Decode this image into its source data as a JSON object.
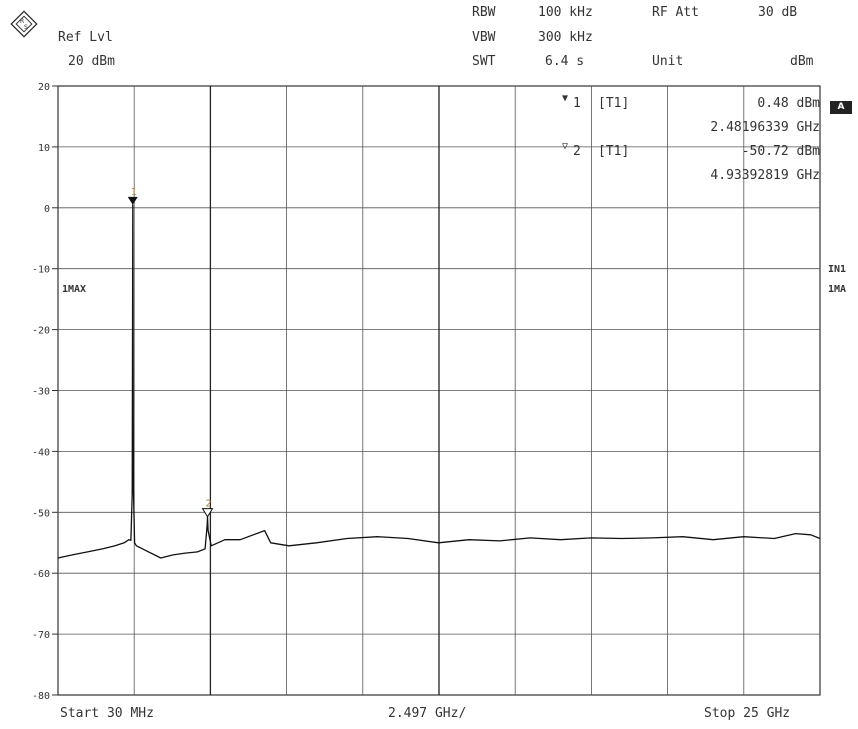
{
  "header": {
    "ref_lvl_label": "Ref Lvl",
    "ref_lvl_value": "20 dBm",
    "rbw_label": "RBW",
    "rbw_value": "100 kHz",
    "vbw_label": "VBW",
    "vbw_value": "300 kHz",
    "swt_label": "SWT",
    "swt_value": "6.4 s",
    "rf_att_label": "RF Att",
    "rf_att_value": "30 dB",
    "unit_label": "Unit",
    "unit_value": "dBm"
  },
  "markers": [
    {
      "id": "1",
      "trace": "[T1]",
      "level": "0.48 dBm",
      "freq": "2.48196339 GHz"
    },
    {
      "id": "2",
      "trace": "[T1]",
      "level": "-50.72 dBm",
      "freq": "4.93392819 GHz"
    }
  ],
  "side_labels": {
    "box_a": "A",
    "in1": "IN1",
    "ma1": "1MA",
    "trace_mode": "1MAX"
  },
  "footer": {
    "start": "Start 30 MHz",
    "span": "2.497 GHz/",
    "stop": "Stop 25 GHz"
  },
  "chart_data": {
    "type": "line",
    "xlabel": "",
    "ylabel": "",
    "x_unit": "GHz",
    "y_unit": "dBm",
    "xlim": [
      0.03,
      25
    ],
    "ylim": [
      -80,
      20
    ],
    "y_ticks": [
      "20",
      "10",
      "0",
      "-10",
      "-20",
      "-30",
      "-40",
      "-50",
      "-60",
      "-70",
      "-80"
    ],
    "grid": true,
    "series": [
      {
        "x": [
          0.03,
          0.5,
          1.0,
          1.5,
          1.9,
          2.2,
          2.35,
          2.42,
          2.46,
          2.48,
          2.5,
          2.54,
          2.6,
          3.0,
          3.4,
          3.8,
          4.2,
          4.6,
          4.85,
          4.92,
          4.93,
          4.95,
          5.05,
          5.5,
          6.0,
          6.8,
          7.0,
          7.6,
          8.5,
          9.5,
          10.5,
          11.5,
          12.5,
          13.5,
          14.5,
          15.5,
          16.5,
          17.5,
          18.5,
          19.5,
          20.5,
          21.5,
          22.5,
          23.5,
          24.2,
          24.7,
          25.0
        ],
        "y": [
          -57.5,
          -57,
          -56.5,
          -56,
          -55.5,
          -55,
          -54.5,
          -54.6,
          -47,
          0.48,
          -46,
          -55,
          -55.5,
          -56.5,
          -57.5,
          -57,
          -56.7,
          -56.5,
          -56,
          -52,
          -50.72,
          -53,
          -55.5,
          -54.5,
          -54.5,
          -53,
          -55,
          -55.5,
          -55,
          -54.3,
          -54,
          -54.3,
          -55,
          -54.5,
          -54.7,
          -54.2,
          -54.5,
          -54.2,
          -54.3,
          -54.2,
          -54,
          -54.5,
          -54,
          -54.3,
          -53.5,
          -53.7,
          -54.3
        ]
      }
    ]
  }
}
